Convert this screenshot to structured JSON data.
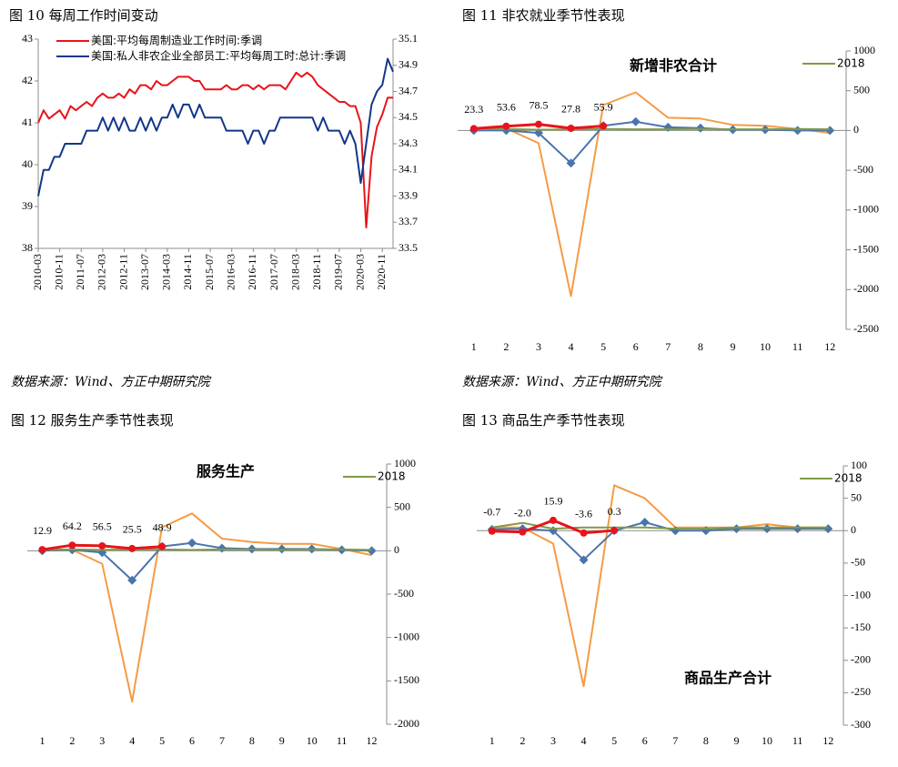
{
  "chart_data": [
    {
      "type": "line",
      "title": "图 10 每周工作时间变动",
      "source": "数据来源：Wind、方正中期研究院",
      "legend": "upper left",
      "categories": [
        "2010-03",
        null,
        null,
        null,
        "2010-11",
        null,
        null,
        null,
        "2011-07",
        null,
        null,
        null,
        "2012-03",
        null,
        null,
        null,
        "2012-11",
        null,
        null,
        null,
        "2013-07",
        null,
        null,
        null,
        "2014-03",
        null,
        null,
        null,
        "2014-11",
        null,
        null,
        null,
        "2015-07",
        null,
        null,
        null,
        "2016-03",
        null,
        null,
        null,
        "2016-11",
        null,
        null,
        null,
        "2017-07",
        null,
        null,
        null,
        "2018-03",
        null,
        null,
        null,
        "2018-11",
        null,
        null,
        null,
        "2019-07",
        null,
        null,
        null,
        "2020-03",
        null,
        null,
        null,
        "2020-11",
        null,
        null
      ],
      "series": [
        {
          "name": "美国:平均每周制造业工作时间:季调",
          "color": "#e8141b",
          "values": [
            41.0,
            41.3,
            41.1,
            41.2,
            41.3,
            41.1,
            41.4,
            41.3,
            41.4,
            41.5,
            41.4,
            41.6,
            41.7,
            41.6,
            41.6,
            41.7,
            41.6,
            41.8,
            41.7,
            41.9,
            41.9,
            41.8,
            42.0,
            41.9,
            41.9,
            42.0,
            42.1,
            42.1,
            42.1,
            42.0,
            42.0,
            41.8,
            41.8,
            41.8,
            41.8,
            41.9,
            41.8,
            41.8,
            41.9,
            41.9,
            41.8,
            41.9,
            41.8,
            41.9,
            41.9,
            41.9,
            41.8,
            42.0,
            42.2,
            42.1,
            42.2,
            42.1,
            41.9,
            41.8,
            41.7,
            41.6,
            41.5,
            41.5,
            41.4,
            41.4,
            41.0,
            38.5,
            40.2,
            40.9,
            41.2,
            41.6,
            41.6
          ]
        },
        {
          "name": "美国:私人非农企业全部员工:平均每周工时:总计:季调",
          "color": "#12368c",
          "axis": "y2",
          "values": [
            33.9,
            34.1,
            34.1,
            34.2,
            34.2,
            34.3,
            34.3,
            34.3,
            34.3,
            34.4,
            34.4,
            34.4,
            34.5,
            34.4,
            34.5,
            34.4,
            34.5,
            34.4,
            34.4,
            34.5,
            34.4,
            34.5,
            34.4,
            34.5,
            34.5,
            34.6,
            34.5,
            34.6,
            34.6,
            34.5,
            34.6,
            34.5,
            34.5,
            34.5,
            34.5,
            34.4,
            34.4,
            34.4,
            34.4,
            34.3,
            34.4,
            34.4,
            34.3,
            34.4,
            34.4,
            34.5,
            34.5,
            34.5,
            34.5,
            34.5,
            34.5,
            34.5,
            34.4,
            34.5,
            34.4,
            34.4,
            34.4,
            34.3,
            34.4,
            34.3,
            34.0,
            34.3,
            34.6,
            34.7,
            34.75,
            34.95,
            34.85
          ]
        }
      ],
      "ylim": [
        38,
        43
      ],
      "yticks": [
        38,
        39,
        40,
        41,
        42,
        43
      ],
      "y2lim": [
        33.5,
        35.1
      ],
      "y2ticks": [
        33.5,
        33.7,
        33.9,
        34.1,
        34.3,
        34.5,
        34.7,
        34.9,
        35.1
      ]
    },
    {
      "type": "line",
      "title": "图 11 非农就业季节性表现",
      "subtitle": "新增非农合计",
      "source": "数据来源：Wind、方正中期研究院",
      "legend": "upper right",
      "y_axis_side": "right",
      "categories": [
        1,
        2,
        3,
        4,
        5,
        6,
        7,
        8,
        9,
        10,
        11,
        12
      ],
      "series": [
        {
          "color": "#f59b45",
          "values": [
            20,
            25,
            -160,
            -2080,
            320,
            480,
            160,
            150,
            70,
            60,
            20,
            -30
          ]
        },
        {
          "color": "#4a74ac",
          "marker": "diamond",
          "values": [
            0,
            0,
            -30,
            -410,
            60,
            110,
            40,
            30,
            10,
            10,
            0,
            0
          ]
        },
        {
          "name": "2018",
          "color": "#7f9a48",
          "values": [
            15,
            20,
            10,
            15,
            20,
            15,
            15,
            20,
            15,
            15,
            20,
            15
          ]
        },
        {
          "color": "#e8141b",
          "marker": "circle",
          "values": [
            23.3,
            53.6,
            78.5,
            27.8,
            55.9,
            null,
            null,
            null,
            null,
            null,
            null,
            null
          ],
          "value_labels": [
            "23.3",
            "53.6",
            "78.5",
            "27.8",
            "55.9",
            null,
            null,
            null,
            null,
            null,
            null,
            null
          ]
        }
      ],
      "ylim": [
        -2500,
        1000
      ],
      "yticks": [
        -2500,
        -2000,
        -1500,
        -1000,
        -500,
        0,
        500,
        1000
      ]
    },
    {
      "type": "line",
      "title": "图 12 服务生产季节性表现",
      "subtitle": "服务生产",
      "legend": "upper right",
      "y_axis_side": "right",
      "categories": [
        1,
        2,
        3,
        4,
        5,
        6,
        7,
        8,
        9,
        10,
        11,
        12
      ],
      "series": [
        {
          "color": "#f59b45",
          "values": [
            20,
            10,
            -150,
            -1740,
            270,
            430,
            140,
            100,
            80,
            80,
            20,
            -50
          ]
        },
        {
          "color": "#4a74ac",
          "marker": "diamond",
          "values": [
            0,
            10,
            -20,
            -340,
            50,
            90,
            30,
            20,
            20,
            20,
            10,
            0
          ]
        },
        {
          "name": "2018",
          "color": "#7f9a48",
          "values": [
            10,
            15,
            10,
            15,
            15,
            10,
            15,
            15,
            10,
            15,
            15,
            10
          ]
        },
        {
          "color": "#e8141b",
          "marker": "circle",
          "values": [
            12.9,
            64.2,
            56.5,
            25.5,
            48.9,
            null,
            null,
            null,
            null,
            null,
            null,
            null
          ],
          "value_labels": [
            "12.9",
            "64.2",
            "56.5",
            "25.5",
            "48.9",
            null,
            null,
            null,
            null,
            null,
            null,
            null
          ]
        }
      ],
      "ylim": [
        -2000,
        1000
      ],
      "yticks": [
        -2000,
        -1500,
        -1000,
        -500,
        0,
        500,
        1000
      ]
    },
    {
      "type": "line",
      "title": "图 13 商品生产季节性表现",
      "subtitle": "商品生产合计",
      "legend": "upper right",
      "y_axis_side": "right",
      "categories": [
        1,
        2,
        3,
        4,
        5,
        6,
        7,
        8,
        9,
        10,
        11,
        12
      ],
      "series": [
        {
          "color": "#f59b45",
          "values": [
            5,
            5,
            -20,
            -240,
            70,
            50,
            5,
            5,
            5,
            10,
            5,
            5
          ]
        },
        {
          "color": "#4a74ac",
          "marker": "diamond",
          "values": [
            2,
            3,
            0,
            -45,
            0,
            13,
            0,
            0,
            3,
            3,
            3,
            3
          ]
        },
        {
          "name": "2018",
          "color": "#7f9a48",
          "values": [
            5,
            12,
            3,
            5,
            5,
            5,
            3,
            3,
            5,
            5,
            5,
            5
          ]
        },
        {
          "color": "#e8141b",
          "marker": "circle",
          "values": [
            -0.7,
            -2.0,
            15.9,
            -3.6,
            0.3,
            null,
            null,
            null,
            null,
            null,
            null,
            null
          ],
          "value_labels": [
            "-0.7",
            "-2.0",
            "15.9",
            "-3.6",
            "0.3",
            null,
            null,
            null,
            null,
            null,
            null,
            null
          ]
        }
      ],
      "ylim": [
        -300,
        100
      ],
      "yticks": [
        -300,
        -250,
        -200,
        -150,
        -100,
        -50,
        0,
        50,
        100
      ]
    }
  ]
}
